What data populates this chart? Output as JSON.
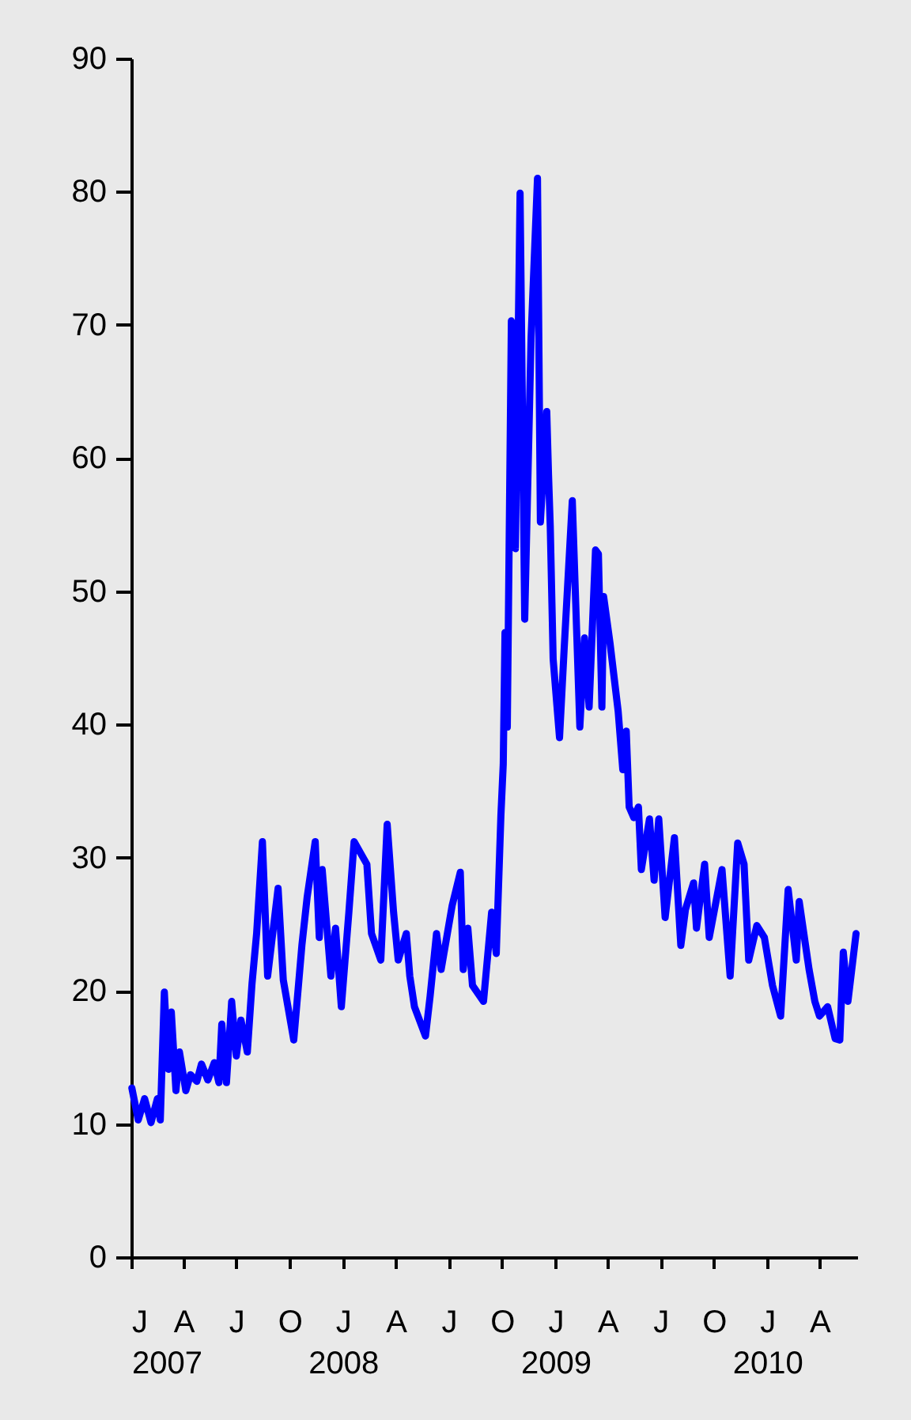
{
  "chart_data": {
    "type": "line",
    "x": [
      "2007-01-02",
      "2007-01-13",
      "2007-01-24",
      "2007-02-04",
      "2007-02-15",
      "2007-02-20",
      "2007-02-27",
      "2007-03-06",
      "2007-03-11",
      "2007-03-19",
      "2007-03-25",
      "2007-04-05",
      "2007-04-13",
      "2007-04-24",
      "2007-05-02",
      "2007-05-13",
      "2007-05-24",
      "2007-06-01",
      "2007-06-06",
      "2007-06-14",
      "2007-06-23",
      "2007-07-01",
      "2007-07-09",
      "2007-07-20",
      "2007-07-28",
      "2007-08-05",
      "2007-08-15",
      "2007-08-24",
      "2007-09-11",
      "2007-09-20",
      "2007-10-08",
      "2007-10-22",
      "2007-10-31",
      "2007-11-14",
      "2007-11-21",
      "2007-11-26",
      "2007-12-11",
      "2007-12-19",
      "2007-12-29",
      "2008-01-11",
      "2008-01-20",
      "2008-02-11",
      "2008-02-19",
      "2008-03-06",
      "2008-03-17",
      "2008-03-28",
      "2008-04-05",
      "2008-04-19",
      "2008-04-25",
      "2008-05-03",
      "2008-05-22",
      "2008-05-30",
      "2008-06-10",
      "2008-06-18",
      "2008-07-07",
      "2008-07-21",
      "2008-07-26",
      "2008-08-03",
      "2008-08-11",
      "2008-08-30",
      "2008-09-13",
      "2008-09-21",
      "2008-09-29",
      "2008-10-03",
      "2008-10-06",
      "2008-10-10",
      "2008-10-17",
      "2008-10-24",
      "2008-11-01",
      "2008-11-09",
      "2008-11-20",
      "2008-12-01",
      "2008-12-06",
      "2008-12-17",
      "2008-12-20",
      "2008-12-23",
      "2008-12-28",
      "2009-01-08",
      "2009-01-16",
      "2009-01-30",
      "2009-02-12",
      "2009-02-20",
      "2009-02-28",
      "2009-03-11",
      "2009-03-16",
      "2009-03-22",
      "2009-03-25",
      "2009-04-05",
      "2009-04-19",
      "2009-04-27",
      "2009-05-03",
      "2009-05-08",
      "2009-05-16",
      "2009-05-24",
      "2009-05-29",
      "2009-06-12",
      "2009-06-20",
      "2009-06-28",
      "2009-07-09",
      "2009-07-25",
      "2009-08-05",
      "2009-08-13",
      "2009-08-27",
      "2009-09-01",
      "2009-09-15",
      "2009-09-23",
      "2009-10-15",
      "2009-10-29",
      "2009-11-11",
      "2009-11-22",
      "2009-11-30",
      "2009-12-14",
      "2009-12-27",
      "2010-01-10",
      "2010-01-24",
      "2010-02-06",
      "2010-02-20",
      "2010-02-25",
      "2010-03-14",
      "2010-03-24",
      "2010-04-01",
      "2010-04-15",
      "2010-04-28",
      "2010-05-06",
      "2010-05-12",
      "2010-05-20",
      "2010-06-03"
    ],
    "series": [
      {
        "color": "#0000ff",
        "values": [
          12.7,
          10.3,
          11.9,
          10.1,
          11.9,
          10.3,
          19.9,
          14.1,
          18.4,
          12.5,
          15.4,
          12.5,
          13.7,
          13.2,
          14.5,
          13.3,
          14.6,
          13.1,
          17.5,
          13.1,
          19.2,
          15.1,
          17.8,
          15.4,
          20.5,
          24.3,
          31.2,
          21.1,
          27.7,
          20.8,
          16.3,
          23.4,
          27.0,
          31.2,
          24.0,
          29.1,
          21.1,
          24.7,
          18.8,
          25.9,
          31.2,
          29.5,
          24.3,
          22.3,
          32.5,
          25.9,
          22.3,
          24.3,
          21.1,
          18.8,
          16.6,
          19.6,
          24.3,
          21.6,
          26.4,
          28.9,
          21.6,
          24.7,
          20.4,
          19.2,
          25.9,
          22.8,
          33.2,
          37.0,
          46.9,
          39.8,
          70.3,
          53.2,
          79.9,
          47.9,
          69.1,
          81.0,
          55.2,
          63.5,
          58.8,
          54.9,
          44.9,
          39.0,
          45.7,
          56.8,
          39.8,
          46.5,
          41.3,
          53.1,
          52.8,
          41.3,
          49.6,
          46.1,
          41.0,
          36.6,
          39.5,
          33.8,
          33.0,
          33.8,
          29.1,
          32.9,
          28.3,
          32.9,
          25.5,
          31.5,
          23.4,
          26.1,
          28.1,
          24.7,
          29.5,
          24.0,
          29.1,
          21.1,
          31.1,
          29.5,
          22.3,
          24.9,
          24.0,
          20.4,
          18.1,
          27.6,
          22.3,
          26.7,
          21.6,
          19.2,
          18.1,
          18.8,
          16.4,
          16.3,
          22.9,
          19.2,
          24.3
        ]
      }
    ],
    "xlim": [
      "2007-01-01",
      "2010-06-05"
    ],
    "xticks": [
      {
        "value": "2007-01-01",
        "label": "J\n2007"
      },
      {
        "value": "2007-04-01",
        "label": "A"
      },
      {
        "value": "2007-07-01",
        "label": "J"
      },
      {
        "value": "2007-10-01",
        "label": "O"
      },
      {
        "value": "2008-01-01",
        "label": "J\n2008"
      },
      {
        "value": "2008-04-01",
        "label": "A"
      },
      {
        "value": "2008-07-01",
        "label": "J"
      },
      {
        "value": "2008-10-01",
        "label": "O"
      },
      {
        "value": "2009-01-01",
        "label": "J\n2009"
      },
      {
        "value": "2009-04-01",
        "label": "A"
      },
      {
        "value": "2009-07-01",
        "label": "J"
      },
      {
        "value": "2009-10-01",
        "label": "O"
      },
      {
        "value": "2010-01-01",
        "label": "J\n2010"
      },
      {
        "value": "2010-04-01",
        "label": "A"
      }
    ],
    "ylim": [
      0,
      90
    ],
    "yticks": [
      0,
      10,
      20,
      30,
      40,
      50,
      60,
      70,
      80,
      90
    ],
    "grid": false,
    "legend": false,
    "marker": "none",
    "line_style": "solid"
  }
}
